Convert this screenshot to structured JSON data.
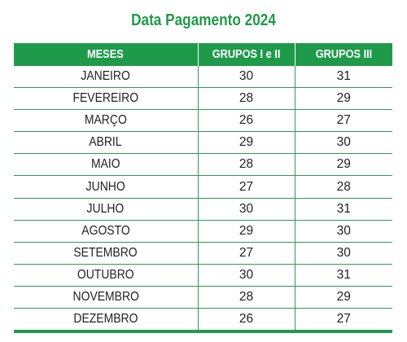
{
  "title": "Data Pagamento 2024",
  "colors": {
    "accent": "#1f9a4b",
    "header_bg": "#1f9a4b",
    "header_text": "#ffffff",
    "body_text": "#222222"
  },
  "table": {
    "headers": [
      "MESES",
      "GRUPOS I e II",
      "GRUPOS III"
    ],
    "rows": [
      [
        "JANEIRO",
        "30",
        "31"
      ],
      [
        "FEVEREIRO",
        "28",
        "29"
      ],
      [
        "MARÇO",
        "26",
        "27"
      ],
      [
        "ABRIL",
        "29",
        "30"
      ],
      [
        "MAIO",
        "28",
        "29"
      ],
      [
        "JUNHO",
        "27",
        "28"
      ],
      [
        "JULHO",
        "30",
        "31"
      ],
      [
        "AGOSTO",
        "29",
        "30"
      ],
      [
        "SETEMBRO",
        "27",
        "30"
      ],
      [
        "OUTUBRO",
        "30",
        "31"
      ],
      [
        "NOVEMBRO",
        "28",
        "29"
      ],
      [
        "DEZEMBRO",
        "26",
        "27"
      ]
    ]
  }
}
